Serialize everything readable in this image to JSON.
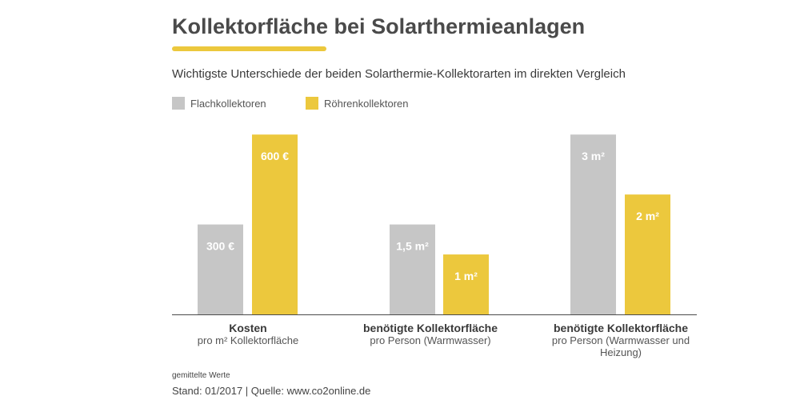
{
  "header": {
    "title": "Kollektorfläche bei Solarthermieanlagen",
    "subtitle": "Wichtigste Unterschiede der beiden Solarthermie-Kollektorarten im direkten Vergleich"
  },
  "colors": {
    "flat": "#c6c6c6",
    "tube": "#ecc83d",
    "accent": "#ecc83d",
    "axis": "#4a4a4a",
    "bar_label": "#ffffff"
  },
  "chart_data": {
    "type": "bar",
    "title": "Kollektorfläche bei Solarthermieanlagen",
    "legend": [
      "Flachkollektoren",
      "Röhrenkollektoren"
    ],
    "legend_position": "top-left",
    "grid": false,
    "groups": [
      {
        "label_main": "Kosten",
        "label_sub": "pro m² Kollektorfläche",
        "ylim": [
          0,
          750
        ],
        "values": [
          300,
          600
        ],
        "value_labels": [
          "300 €",
          "600 €"
        ]
      },
      {
        "label_main": "benötigte Kollektorfläche",
        "label_sub": "pro Person (Warmwasser)",
        "ylim": [
          0,
          3.75
        ],
        "values": [
          1.5,
          1.0
        ],
        "value_labels": [
          "1,5 m²",
          "1 m²"
        ]
      },
      {
        "label_main": "benötigte Kollektorfläche",
        "label_sub": "pro Person (Warmwasser und Heizung)",
        "ylim": [
          0,
          3.75
        ],
        "values": [
          3,
          2
        ],
        "value_labels": [
          "3 m²",
          "2 m²"
        ]
      }
    ]
  },
  "footer": {
    "note": "gemittelte Werte",
    "source": "Stand: 01/2017 | Quelle: www.co2online.de"
  }
}
